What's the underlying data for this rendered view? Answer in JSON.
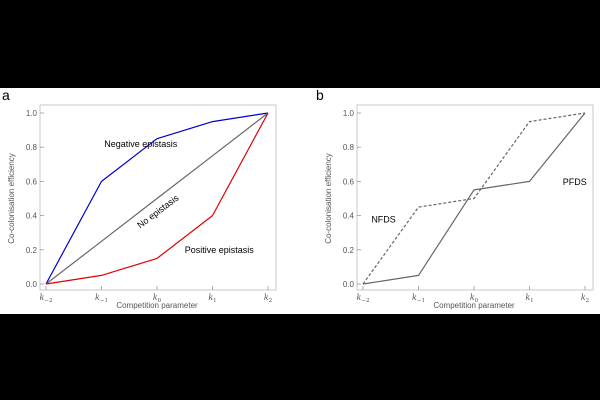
{
  "panels": {
    "a": {
      "letter": "a"
    },
    "b": {
      "letter": "b"
    }
  },
  "chart_data": [
    {
      "type": "line",
      "title": "",
      "xlabel": "Competition parameter",
      "ylabel": "Co-colonisation efficiency",
      "categories": [
        "k-2",
        "k-1",
        "k0",
        "k1",
        "k2"
      ],
      "x_tick_labels": [
        {
          "base": "k",
          "sub": "−2"
        },
        {
          "base": "k",
          "sub": "−1"
        },
        {
          "base": "k",
          "sub": "0"
        },
        {
          "base": "k",
          "sub": "1"
        },
        {
          "base": "k",
          "sub": "2"
        }
      ],
      "ylim": [
        0,
        1
      ],
      "yticks": [
        "0.0",
        "0.2",
        "0.4",
        "0.6",
        "0.8",
        "1.0"
      ],
      "series": [
        {
          "name": "Negative epistasis",
          "values": [
            0.0,
            0.6,
            0.85,
            0.95,
            1.0
          ],
          "color": "#0000cc",
          "dash": false
        },
        {
          "name": "No epistasis",
          "values": [
            0.0,
            0.25,
            0.5,
            0.75,
            1.0
          ],
          "color": "#666666",
          "dash": false
        },
        {
          "name": "Positive epistasis",
          "values": [
            0.0,
            0.05,
            0.15,
            0.4,
            1.0
          ],
          "color": "#dd0000",
          "dash": false
        }
      ],
      "annotations": [
        {
          "text": "Negative epistasis",
          "x": 1.05,
          "y": 0.8,
          "rotate": 0
        },
        {
          "text": "No epistasis",
          "x": 2.05,
          "y": 0.41,
          "rotate": -37
        },
        {
          "text": "Positive epistasis",
          "x": 2.5,
          "y": 0.18,
          "rotate": 0
        }
      ],
      "grid": false
    },
    {
      "type": "line",
      "title": "",
      "xlabel": "Competition parameter",
      "ylabel": "Co-colonisation efficiency",
      "categories": [
        "k-2",
        "k-1",
        "k0",
        "k1",
        "k2"
      ],
      "x_tick_labels": [
        {
          "base": "k",
          "sub": "−2"
        },
        {
          "base": "k",
          "sub": "−1"
        },
        {
          "base": "k",
          "sub": "0"
        },
        {
          "base": "k",
          "sub": "1"
        },
        {
          "base": "k",
          "sub": "2"
        }
      ],
      "ylim": [
        0,
        1
      ],
      "yticks": [
        "0.0",
        "0.2",
        "0.4",
        "0.6",
        "0.8",
        "1.0"
      ],
      "series": [
        {
          "name": "NFDS",
          "values": [
            0.0,
            0.45,
            0.5,
            0.95,
            1.0
          ],
          "color": "#666666",
          "dash": true
        },
        {
          "name": "PFDS",
          "values": [
            0.0,
            0.05,
            0.55,
            0.6,
            1.0
          ],
          "color": "#666666",
          "dash": false
        }
      ],
      "annotations": [
        {
          "text": "NFDS",
          "x": 0.15,
          "y": 0.36,
          "rotate": 0
        },
        {
          "text": "PFDS",
          "x": 3.6,
          "y": 0.58,
          "rotate": 0
        }
      ],
      "grid": false
    }
  ]
}
